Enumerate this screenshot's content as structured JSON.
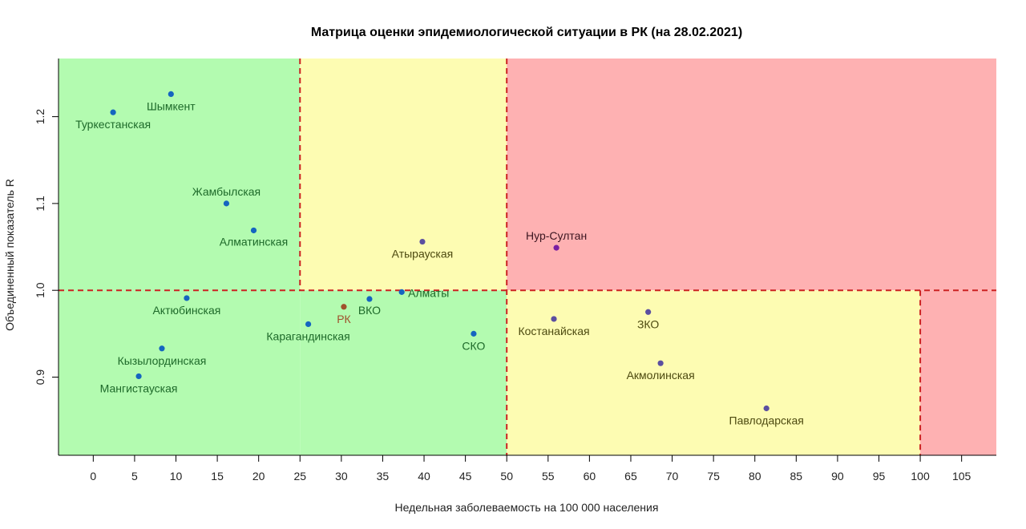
{
  "chart_data": {
    "type": "scatter",
    "title": "Матрица оценки эпидемиологической ситуации в РК (на 28.02.2021)",
    "xlabel": "Недельная заболеваемость на 100 000 населения",
    "ylabel": "Объединенный показатель R",
    "xlim": [
      -4.2,
      109.2
    ],
    "ylim": [
      0.81,
      1.267
    ],
    "x_ticks": [
      0,
      5,
      10,
      15,
      20,
      25,
      30,
      35,
      40,
      45,
      50,
      55,
      60,
      65,
      70,
      75,
      80,
      85,
      90,
      95,
      100,
      105
    ],
    "y_ticks": [
      0.9,
      1.0,
      1.1,
      1.2
    ],
    "y_tick_labels": [
      "0.9",
      "1.0",
      "1.1",
      "1.2"
    ],
    "zones": [
      {
        "x": [
          -4.2,
          25
        ],
        "y": [
          0.81,
          1.267
        ],
        "color": "#b3fbb0"
      },
      {
        "x": [
          25,
          50
        ],
        "y": [
          1.0,
          1.267
        ],
        "color": "#fdfcb2"
      },
      {
        "x": [
          25,
          50
        ],
        "y": [
          0.81,
          1.0
        ],
        "color": "#b3fbb0"
      },
      {
        "x": [
          50,
          109.2
        ],
        "y": [
          1.0,
          1.267
        ],
        "color": "#feb1b2"
      },
      {
        "x": [
          50,
          100
        ],
        "y": [
          0.81,
          1.0
        ],
        "color": "#fdfcb2"
      },
      {
        "x": [
          100,
          109.2
        ],
        "y": [
          0.81,
          1.0
        ],
        "color": "#feb1b2"
      }
    ],
    "thresholds": {
      "vertical": [
        {
          "x": 25,
          "y": [
            1.0,
            1.267
          ]
        },
        {
          "x": 50,
          "y": [
            0.81,
            1.267
          ]
        },
        {
          "x": 100,
          "y": [
            0.81,
            1.0
          ]
        }
      ],
      "horizontal": [
        {
          "y": 1.0,
          "x": [
            -4.2,
            109.2
          ]
        }
      ],
      "color": "#cc2222"
    },
    "points": [
      {
        "name": "Шымкент",
        "x": 9.4,
        "y": 1.226,
        "color": "#1565c0",
        "label_color": "#1e6a2a",
        "anchor": "middle",
        "dx": 0,
        "dy": 20
      },
      {
        "name": "Туркестанская",
        "x": 2.4,
        "y": 1.205,
        "color": "#1565c0",
        "label_color": "#1e6a2a",
        "anchor": "middle",
        "dx": 0,
        "dy": 20
      },
      {
        "name": "Жамбылская",
        "x": 16.1,
        "y": 1.1,
        "color": "#1565c0",
        "label_color": "#1e6a2a",
        "anchor": "middle",
        "dx": 0,
        "dy": -10
      },
      {
        "name": "Алматинская",
        "x": 19.4,
        "y": 1.069,
        "color": "#1565c0",
        "label_color": "#1e6a2a",
        "anchor": "middle",
        "dx": 0,
        "dy": 19
      },
      {
        "name": "Атырауская",
        "x": 39.8,
        "y": 1.056,
        "color": "#5b4fa0",
        "label_color": "#4d4a10",
        "anchor": "middle",
        "dx": 0,
        "dy": 20
      },
      {
        "name": "Нур-Султан",
        "x": 56.0,
        "y": 1.049,
        "color": "#7a1fa2",
        "label_color": "#3b1520",
        "anchor": "middle",
        "dx": 0,
        "dy": -10
      },
      {
        "name": "Актюбинская",
        "x": 11.3,
        "y": 0.991,
        "color": "#1565c0",
        "label_color": "#1e6a2a",
        "anchor": "middle",
        "dx": 0,
        "dy": 20
      },
      {
        "name": "РК",
        "x": 30.3,
        "y": 0.981,
        "color": "#a0522d",
        "label_color": "#a0522d",
        "anchor": "middle",
        "dx": 0,
        "dy": 20
      },
      {
        "name": "ВКО",
        "x": 33.4,
        "y": 0.99,
        "color": "#1565c0",
        "label_color": "#1e6a2a",
        "anchor": "middle",
        "dx": 0,
        "dy": 19
      },
      {
        "name": "Алматы",
        "x": 37.3,
        "y": 0.998,
        "color": "#1565c0",
        "label_color": "#1e6a2a",
        "anchor": "start",
        "dx": 8,
        "dy": 6
      },
      {
        "name": "Карагандинская",
        "x": 26.0,
        "y": 0.961,
        "color": "#1565c0",
        "label_color": "#1e6a2a",
        "anchor": "middle",
        "dx": 0,
        "dy": 20
      },
      {
        "name": "СКО",
        "x": 46.0,
        "y": 0.95,
        "color": "#1565c0",
        "label_color": "#1e6a2a",
        "anchor": "middle",
        "dx": 0,
        "dy": 20
      },
      {
        "name": "Костанайская",
        "x": 55.7,
        "y": 0.967,
        "color": "#5b4fa0",
        "label_color": "#4d4a10",
        "anchor": "middle",
        "dx": 0,
        "dy": 20
      },
      {
        "name": "ЗКО",
        "x": 67.1,
        "y": 0.975,
        "color": "#5b4fa0",
        "label_color": "#4d4a10",
        "anchor": "middle",
        "dx": 0,
        "dy": 20
      },
      {
        "name": "Кызылординская",
        "x": 8.3,
        "y": 0.933,
        "color": "#1565c0",
        "label_color": "#1e6a2a",
        "anchor": "middle",
        "dx": 0,
        "dy": 20
      },
      {
        "name": "Мангистауская",
        "x": 5.5,
        "y": 0.901,
        "color": "#1565c0",
        "label_color": "#1e6a2a",
        "anchor": "middle",
        "dx": 0,
        "dy": 20
      },
      {
        "name": "Акмолинская",
        "x": 68.6,
        "y": 0.916,
        "color": "#5b4fa0",
        "label_color": "#4d4a10",
        "anchor": "middle",
        "dx": 0,
        "dy": 20
      },
      {
        "name": "Павлодарская",
        "x": 81.4,
        "y": 0.864,
        "color": "#5b4fa0",
        "label_color": "#4d4a10",
        "anchor": "middle",
        "dx": 0,
        "dy": 20
      }
    ]
  }
}
